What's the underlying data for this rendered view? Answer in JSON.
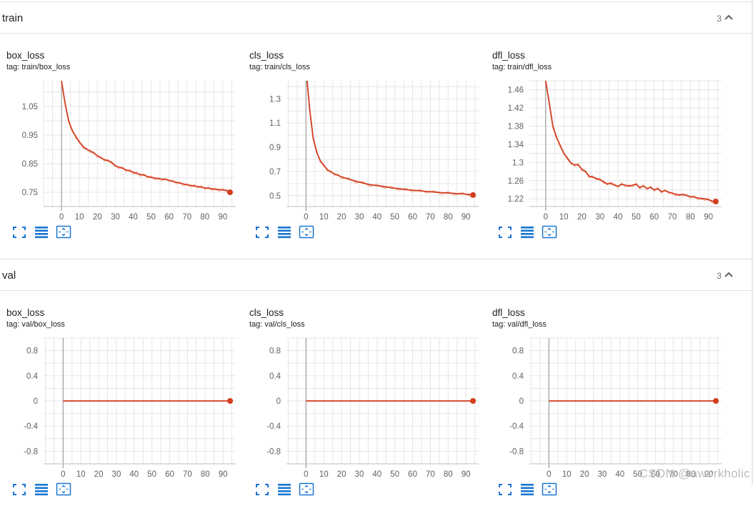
{
  "sections": [
    {
      "title": "train",
      "count": "3",
      "charts": [
        {
          "title": "box_loss",
          "tag": "tag: train/box_loss",
          "chart_data": {
            "type": "line",
            "x": [
              0,
              2,
              4,
              6,
              8,
              10,
              12,
              14,
              16,
              18,
              20,
              22,
              24,
              26,
              28,
              30,
              32,
              34,
              36,
              38,
              40,
              42,
              44,
              46,
              48,
              50,
              52,
              54,
              56,
              58,
              60,
              62,
              64,
              66,
              68,
              70,
              72,
              74,
              76,
              78,
              80,
              82,
              84,
              86,
              88,
              90,
              92,
              94
            ],
            "y": [
              1.14,
              1.06,
              1.0,
              0.965,
              0.945,
              0.925,
              0.91,
              0.9,
              0.895,
              0.887,
              0.878,
              0.87,
              0.864,
              0.86,
              0.855,
              0.842,
              0.838,
              0.834,
              0.828,
              0.825,
              0.82,
              0.816,
              0.812,
              0.81,
              0.805,
              0.802,
              0.8,
              0.797,
              0.796,
              0.795,
              0.792,
              0.788,
              0.785,
              0.782,
              0.779,
              0.776,
              0.774,
              0.772,
              0.77,
              0.768,
              0.765,
              0.764,
              0.762,
              0.76,
              0.759,
              0.758,
              0.757,
              0.75
            ],
            "xticks": [
              0,
              10,
              20,
              30,
              40,
              50,
              60,
              70,
              80,
              90
            ],
            "yticks": [
              0.75,
              0.85,
              0.95,
              1.05
            ],
            "yticklabels": [
              "0.75",
              "0.85",
              "0.95",
              "1.05"
            ],
            "xlim": [
              -10,
              100
            ],
            "ylim": [
              0.7,
              1.14
            ],
            "grid": true,
            "color": "#d33e1f"
          }
        },
        {
          "title": "cls_loss",
          "tag": "tag: train/cls_loss",
          "chart_data": {
            "type": "line",
            "x": [
              0,
              2,
              4,
              6,
              8,
              10,
              12,
              14,
              16,
              18,
              20,
              24,
              28,
              32,
              36,
              40,
              44,
              48,
              52,
              56,
              60,
              64,
              68,
              72,
              76,
              80,
              84,
              88,
              92,
              94
            ],
            "y": [
              1.55,
              1.22,
              0.98,
              0.86,
              0.79,
              0.75,
              0.715,
              0.695,
              0.68,
              0.668,
              0.655,
              0.637,
              0.62,
              0.605,
              0.59,
              0.583,
              0.575,
              0.565,
              0.558,
              0.55,
              0.545,
              0.54,
              0.535,
              0.53,
              0.525,
              0.522,
              0.518,
              0.515,
              0.51,
              0.505
            ],
            "xticks": [
              0,
              10,
              20,
              30,
              40,
              50,
              60,
              70,
              80,
              90
            ],
            "yticks": [
              0.5,
              0.7,
              0.9,
              1.1,
              1.3
            ],
            "yticklabels": [
              "0.5",
              "0.7",
              "0.9",
              "1.1",
              "1.3"
            ],
            "xlim": [
              -11,
              100
            ],
            "ylim": [
              0.41,
              1.45
            ],
            "grid": true,
            "color": "#d33e1f"
          }
        },
        {
          "title": "dfl_loss",
          "tag": "tag: train/dfl_loss",
          "chart_data": {
            "type": "line",
            "x": [
              0,
              2,
              4,
              6,
              8,
              10,
              12,
              14,
              16,
              18,
              20,
              22,
              24,
              26,
              28,
              30,
              32,
              34,
              36,
              38,
              40,
              42,
              44,
              46,
              48,
              50,
              52,
              54,
              56,
              58,
              60,
              62,
              64,
              66,
              68,
              70,
              72,
              74,
              76,
              78,
              80,
              82,
              84,
              86,
              88,
              90,
              92,
              94
            ],
            "y": [
              1.48,
              1.43,
              1.38,
              1.355,
              1.338,
              1.32,
              1.31,
              1.298,
              1.295,
              1.295,
              1.285,
              1.28,
              1.27,
              1.268,
              1.265,
              1.262,
              1.258,
              1.252,
              1.255,
              1.25,
              1.248,
              1.252,
              1.25,
              1.248,
              1.25,
              1.252,
              1.245,
              1.248,
              1.243,
              1.245,
              1.24,
              1.242,
              1.236,
              1.238,
              1.235,
              1.232,
              1.23,
              1.228,
              1.23,
              1.227,
              1.225,
              1.224,
              1.222,
              1.22,
              1.22,
              1.218,
              1.215,
              1.214
            ],
            "xticks": [
              0,
              10,
              20,
              30,
              40,
              50,
              60,
              70,
              80,
              90
            ],
            "yticks": [
              1.22,
              1.26,
              1.3,
              1.34,
              1.38,
              1.42,
              1.46
            ],
            "yticklabels": [
              "1.22",
              "1.26",
              "1.3",
              "1.34",
              "1.38",
              "1.42",
              "1.46"
            ],
            "xlim": [
              -9,
              100
            ],
            "ylim": [
              1.203,
              1.48
            ],
            "grid": true,
            "color": "#d33e1f"
          }
        }
      ]
    },
    {
      "title": "val",
      "count": "3",
      "charts": [
        {
          "title": "box_loss",
          "tag": "tag: val/box_loss",
          "chart_data": {
            "type": "line",
            "x": [
              0,
              94
            ],
            "y": [
              0,
              0
            ],
            "xticks": [
              0,
              10,
              20,
              30,
              40,
              50,
              60,
              70,
              80,
              90
            ],
            "yticks": [
              -0.8,
              -0.4,
              0,
              0.4,
              0.8
            ],
            "yticklabels": [
              "-0.8",
              "-0.4",
              "0",
              "0.4",
              "0.8"
            ],
            "xlim": [
              -11,
              100
            ],
            "ylim": [
              -1.0,
              1.0
            ],
            "grid": true,
            "color": "#d33e1f"
          }
        },
        {
          "title": "cls_loss",
          "tag": "tag: val/cls_loss",
          "chart_data": {
            "type": "line",
            "x": [
              0,
              94
            ],
            "y": [
              0,
              0
            ],
            "xticks": [
              0,
              10,
              20,
              30,
              40,
              50,
              60,
              70,
              80,
              90
            ],
            "yticks": [
              -0.8,
              -0.4,
              0,
              0.4,
              0.8
            ],
            "yticklabels": [
              "-0.8",
              "-0.4",
              "0",
              "0.4",
              "0.8"
            ],
            "xlim": [
              -11,
              100
            ],
            "ylim": [
              -1.0,
              1.0
            ],
            "grid": true,
            "color": "#d33e1f"
          }
        },
        {
          "title": "dfl_loss",
          "tag": "tag: val/dfl_loss",
          "chart_data": {
            "type": "line",
            "x": [
              0,
              94
            ],
            "y": [
              0,
              0
            ],
            "xticks": [
              0,
              10,
              20,
              30,
              40,
              50,
              60,
              70,
              80,
              90
            ],
            "yticks": [
              -0.8,
              -0.4,
              0,
              0.4,
              0.8
            ],
            "yticklabels": [
              "-0.8",
              "-0.4",
              "0",
              "0.4",
              "0.8"
            ],
            "xlim": [
              -11,
              100
            ],
            "ylim": [
              -1.0,
              1.0
            ],
            "grid": true,
            "color": "#d33e1f"
          }
        }
      ]
    }
  ],
  "toolbar": {
    "icons": [
      "fit-screen-icon",
      "data-table-icon",
      "fit-domain-icon"
    ],
    "accent": "#1976d2"
  },
  "watermark": "CSDN @aworkholic"
}
